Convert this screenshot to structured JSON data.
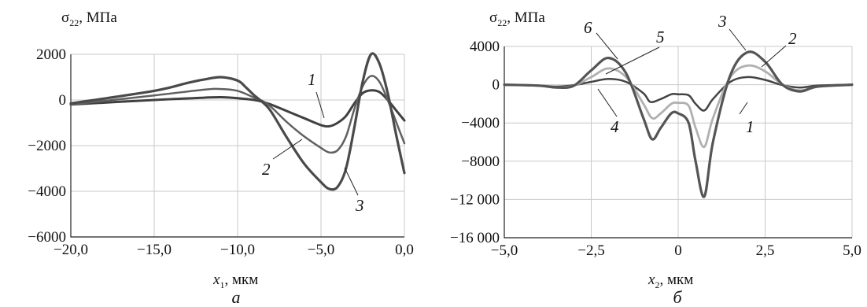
{
  "chart_data": [
    {
      "type": "line",
      "panel_label": "а",
      "ylabel_sym": "σ",
      "ylabel_sub": "22",
      "ylabel_unit": ", МПа",
      "xlabel_sym": "x",
      "xlabel_sub": "1",
      "xlabel_unit": ", мкм",
      "xlim": [
        -20,
        0
      ],
      "ylim": [
        -6000,
        2000
      ],
      "xticks": [
        -20,
        -15,
        -10,
        -5,
        0
      ],
      "xtick_labels": [
        "−20,0",
        "−15,0",
        "−10,0",
        "−5,0",
        "0,0"
      ],
      "yticks": [
        -6000,
        -4000,
        -2000,
        0,
        2000
      ],
      "ytick_labels": [
        "−6000",
        "−4000",
        "−2000",
        "0",
        "2000"
      ],
      "grid": true,
      "series": [
        {
          "name": "1",
          "color": "#404040",
          "width": 3,
          "x": [
            -20,
            -15,
            -12,
            -11,
            -10,
            -9,
            -8.5,
            -8,
            -7,
            -6,
            -5,
            -4.5,
            -4,
            -3.5,
            -3,
            -2.5,
            -2,
            -1.5,
            -1,
            -0.5,
            0
          ],
          "y": [
            -200,
            0,
            100,
            120,
            80,
            0,
            -80,
            -200,
            -500,
            -800,
            -1100,
            -1150,
            -1000,
            -700,
            -150,
            300,
            420,
            350,
            0,
            -450,
            -900
          ]
        },
        {
          "name": "2",
          "color": "#606060",
          "width": 2.5,
          "x": [
            -20,
            -15,
            -12,
            -11,
            -10,
            -9,
            -8.5,
            -8,
            -7,
            -6,
            -5,
            -4.5,
            -4,
            -3.5,
            -3,
            -2.5,
            -2,
            -1.5,
            -1,
            -0.5,
            0
          ],
          "y": [
            -200,
            200,
            450,
            480,
            400,
            100,
            -50,
            -300,
            -1000,
            -1600,
            -2100,
            -2300,
            -2200,
            -1600,
            -400,
            600,
            1050,
            800,
            0,
            -950,
            -1900
          ]
        },
        {
          "name": "3",
          "color": "#4a4a4a",
          "width": 3.2,
          "x": [
            -20,
            -15,
            -13,
            -12,
            -11,
            -10,
            -9.5,
            -9,
            -8.5,
            -8,
            -7,
            -6,
            -5,
            -4.5,
            -4,
            -3.5,
            -3,
            -2.5,
            -2,
            -1.5,
            -1,
            -0.5,
            0
          ],
          "y": [
            -150,
            400,
            750,
            900,
            1000,
            850,
            550,
            200,
            -100,
            -500,
            -1700,
            -2800,
            -3600,
            -3900,
            -3800,
            -3000,
            -1200,
            800,
            2000,
            1600,
            300,
            -1500,
            -3200
          ]
        }
      ],
      "annotations": [
        "1",
        "2",
        "3"
      ],
      "panel": {
        "xlabel_text": "мкм"
      }
    },
    {
      "type": "line",
      "panel_label": "б",
      "ylabel_sym": "σ",
      "ylabel_sub": "22",
      "ylabel_unit": ", МПа",
      "xlabel_sym": "x",
      "xlabel_sub": "2",
      "xlabel_unit": ", мкм",
      "xlim": [
        -5,
        5
      ],
      "ylim": [
        -16000,
        4000
      ],
      "xticks": [
        -5,
        -2.5,
        0,
        2.5,
        5
      ],
      "xtick_labels": [
        "−5,0",
        "−2,5",
        "0",
        "2,5",
        "5,0"
      ],
      "yticks": [
        -16000,
        -12000,
        -8000,
        -4000,
        0,
        4000
      ],
      "ytick_labels": [
        "−16 000",
        "−12 000",
        "−8000",
        "−4000",
        "0",
        "4000"
      ],
      "grid": true,
      "series": [
        {
          "name": "4",
          "color": "#444444",
          "width": 2.5,
          "x": [
            -5,
            -4,
            -3.5,
            -3,
            -2.5,
            -2,
            -1.5,
            -1,
            -0.8,
            -0.5,
            -0.2,
            0,
            0.3,
            0.5,
            0.75,
            1,
            1.5,
            2,
            2.5,
            3,
            3.5,
            4,
            5
          ],
          "y": [
            0,
            -100,
            -200,
            -50,
            300,
            600,
            300,
            -900,
            -1800,
            -1500,
            -1000,
            -1000,
            -1100,
            -2000,
            -2700,
            -1500,
            300,
            800,
            500,
            -50,
            -300,
            -100,
            0
          ]
        },
        {
          "name": "5",
          "color": "#b0b0b0",
          "width": 2.8,
          "x": [
            -5,
            -4,
            -3.5,
            -3,
            -2.5,
            -2,
            -1.5,
            -1,
            -0.75,
            -0.5,
            -0.2,
            0,
            0.3,
            0.5,
            0.75,
            1,
            1.5,
            2,
            2.5,
            3,
            3.5,
            4,
            5
          ],
          "y": [
            0,
            -100,
            -300,
            -100,
            800,
            1700,
            800,
            -2000,
            -3500,
            -3000,
            -2000,
            -1900,
            -2200,
            -4500,
            -6500,
            -3500,
            800,
            2000,
            1400,
            0,
            -600,
            -200,
            0
          ]
        },
        {
          "name": "6",
          "color": "#555555",
          "width": 3.2,
          "x": [
            -5,
            -4,
            -3.5,
            -3,
            -2.5,
            -2,
            -1.5,
            -1,
            -0.75,
            -0.5,
            -0.2,
            0,
            0.3,
            0.5,
            0.75,
            1,
            1.5,
            2,
            2.5,
            3,
            3.5,
            4,
            5
          ],
          "y": [
            0,
            -100,
            -300,
            -100,
            1500,
            2800,
            1200,
            -3500,
            -5700,
            -4500,
            -3000,
            -3000,
            -4000,
            -8000,
            -11700,
            -6000,
            1000,
            3400,
            2400,
            0,
            -700,
            -200,
            0
          ]
        }
      ],
      "annotations": [
        "1",
        "2",
        "3",
        "4",
        "5",
        "6"
      ],
      "panel": {
        "xlabel_text": "мкм"
      }
    }
  ]
}
